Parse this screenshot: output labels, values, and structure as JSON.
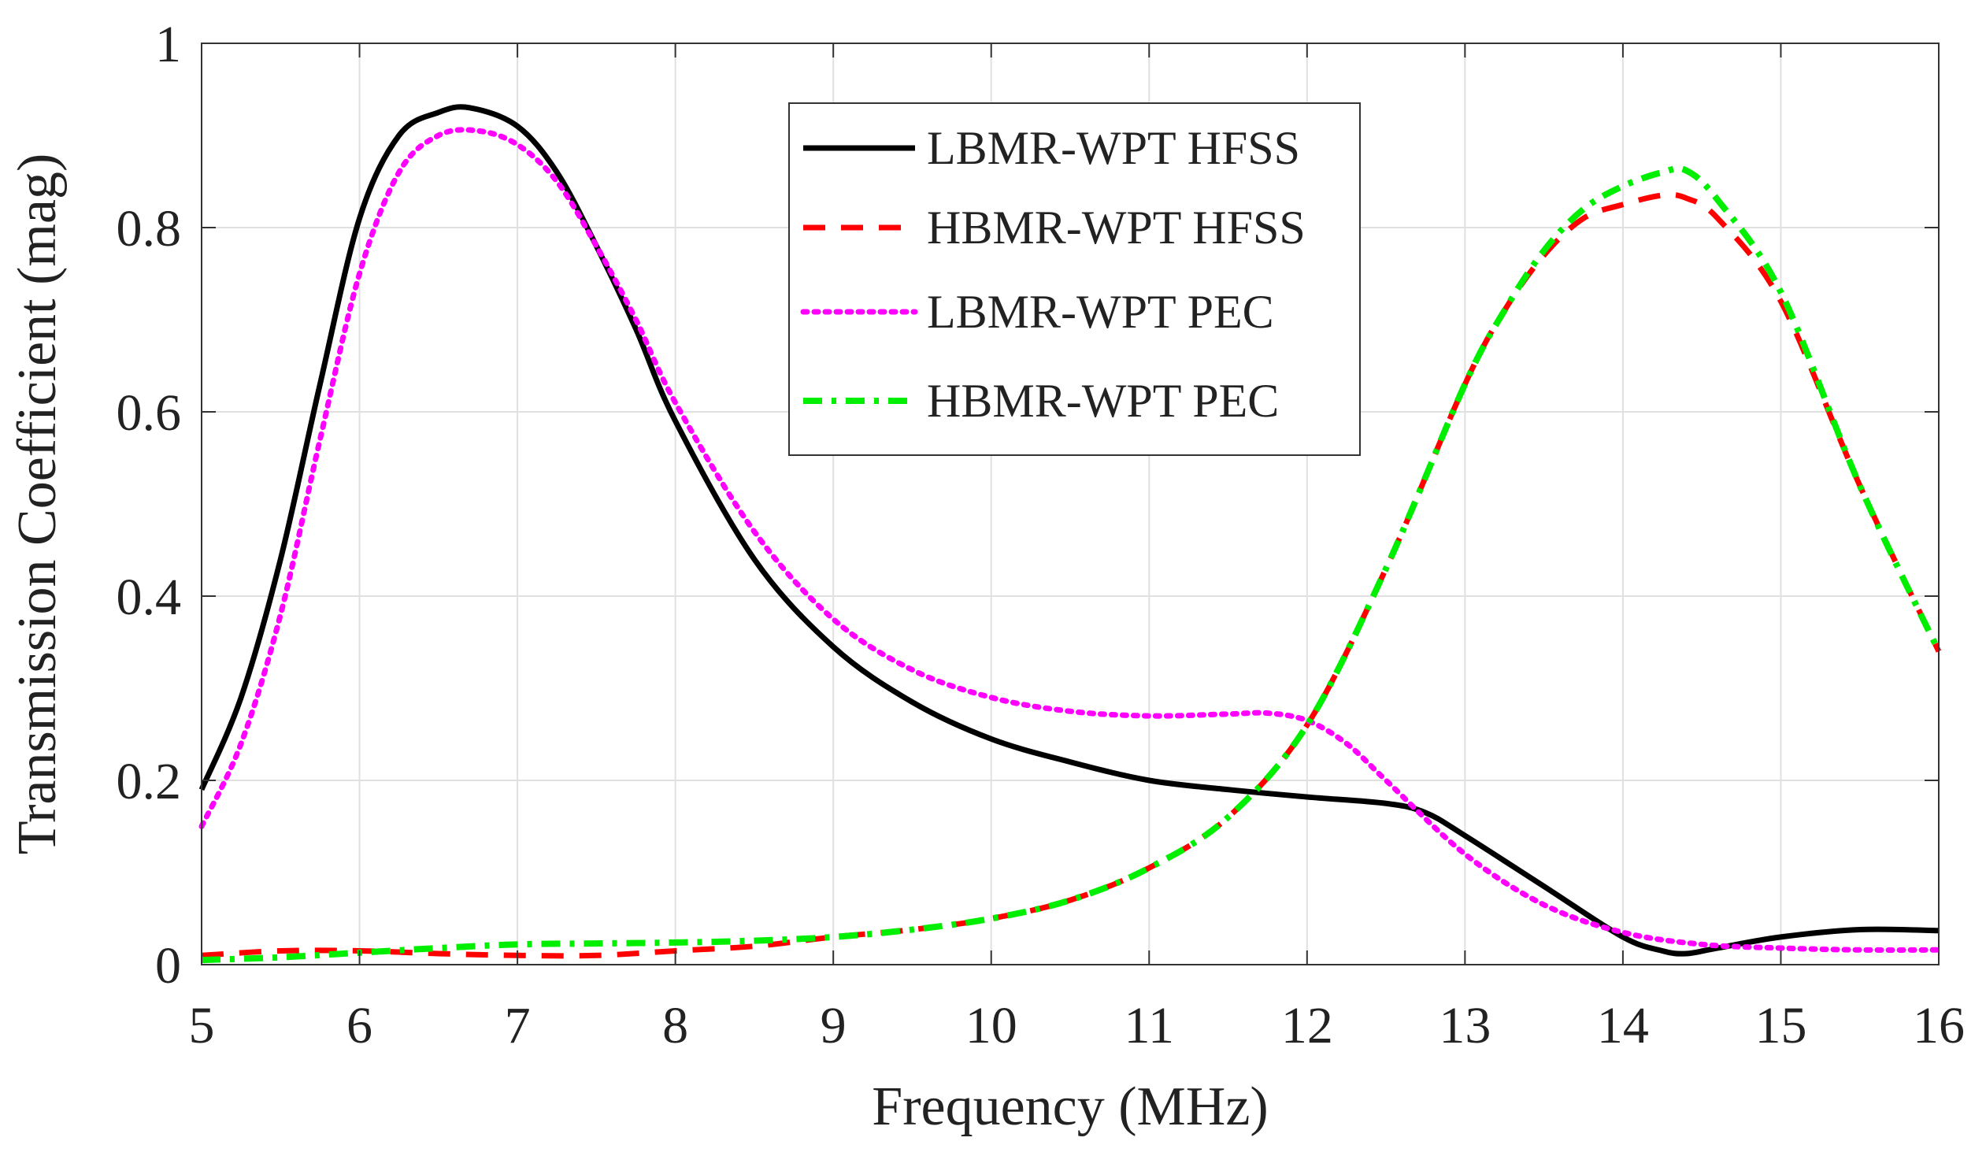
{
  "chart_data": {
    "type": "line",
    "title": "",
    "xlabel": "Frequency (MHz)",
    "ylabel": "Transmission Coefficient (mag)",
    "xlim": [
      5,
      16
    ],
    "ylim": [
      0,
      1
    ],
    "xticks": [
      5,
      6,
      7,
      8,
      9,
      10,
      11,
      12,
      13,
      14,
      15,
      16
    ],
    "xtick_labels": [
      "5",
      "6",
      "7",
      "8",
      "9",
      "10",
      "11",
      "12",
      "13",
      "14",
      "15",
      "16"
    ],
    "yticks": [
      0,
      0.2,
      0.4,
      0.6,
      0.8,
      1
    ],
    "ytick_labels": [
      "0",
      "0.2",
      "0.4",
      "0.6",
      "0.8",
      "1"
    ],
    "grid": true,
    "legend_position": "top-center",
    "series": [
      {
        "name": "LBMR-WPT HFSS",
        "color": "#000000",
        "style": "solid",
        "x": [
          5,
          5.25,
          5.5,
          5.75,
          6,
          6.25,
          6.5,
          6.7,
          7,
          7.25,
          7.5,
          7.75,
          8,
          8.5,
          9,
          9.5,
          10,
          10.5,
          11,
          11.5,
          12,
          12.5,
          12.75,
          13,
          13.5,
          14,
          14.25,
          14.4,
          14.6,
          15,
          15.5,
          16
        ],
        "y": [
          0.19,
          0.29,
          0.44,
          0.63,
          0.81,
          0.9,
          0.925,
          0.93,
          0.91,
          0.86,
          0.78,
          0.69,
          0.59,
          0.44,
          0.345,
          0.285,
          0.245,
          0.22,
          0.2,
          0.19,
          0.182,
          0.175,
          0.165,
          0.14,
          0.085,
          0.03,
          0.015,
          0.012,
          0.018,
          0.03,
          0.038,
          0.037
        ]
      },
      {
        "name": "HBMR-WPT HFSS",
        "color": "#ff0000",
        "style": "dashed",
        "x": [
          5,
          5.5,
          6,
          6.5,
          7,
          7.5,
          8,
          8.5,
          9,
          9.5,
          10,
          10.5,
          11,
          11.5,
          12,
          12.5,
          13,
          13.25,
          13.5,
          13.75,
          14,
          14.25,
          14.4,
          14.6,
          15,
          15.5,
          16
        ],
        "y": [
          0.01,
          0.015,
          0.015,
          0.012,
          0.01,
          0.01,
          0.015,
          0.02,
          0.03,
          0.038,
          0.05,
          0.07,
          0.105,
          0.16,
          0.26,
          0.43,
          0.63,
          0.71,
          0.77,
          0.81,
          0.825,
          0.835,
          0.832,
          0.81,
          0.72,
          0.52,
          0.34
        ]
      },
      {
        "name": "LBMR-WPT PEC",
        "color": "#ff00ff",
        "style": "dotted",
        "x": [
          5,
          5.25,
          5.5,
          5.75,
          6,
          6.25,
          6.5,
          6.75,
          7,
          7.25,
          7.5,
          7.75,
          8,
          8.5,
          9,
          9.5,
          10,
          10.5,
          11,
          11.5,
          11.75,
          12,
          12.25,
          12.5,
          13,
          13.5,
          14,
          14.5,
          15,
          15.5,
          16
        ],
        "y": [
          0.15,
          0.24,
          0.38,
          0.57,
          0.75,
          0.86,
          0.9,
          0.905,
          0.89,
          0.85,
          0.78,
          0.7,
          0.61,
          0.47,
          0.375,
          0.32,
          0.29,
          0.275,
          0.27,
          0.272,
          0.273,
          0.265,
          0.24,
          0.2,
          0.12,
          0.065,
          0.035,
          0.022,
          0.018,
          0.016,
          0.016
        ]
      },
      {
        "name": "HBMR-WPT PEC",
        "color": "#00ee00",
        "style": "dashdot",
        "x": [
          5,
          5.5,
          6,
          6.5,
          7,
          7.5,
          8,
          8.5,
          9,
          9.5,
          10,
          10.5,
          11,
          11.5,
          12,
          12.5,
          13,
          13.25,
          13.5,
          13.75,
          14,
          14.25,
          14.4,
          14.6,
          15,
          15.5,
          16
        ],
        "y": [
          0.005,
          0.008,
          0.013,
          0.018,
          0.022,
          0.023,
          0.024,
          0.026,
          0.03,
          0.038,
          0.05,
          0.07,
          0.105,
          0.16,
          0.26,
          0.43,
          0.63,
          0.71,
          0.775,
          0.82,
          0.845,
          0.86,
          0.862,
          0.83,
          0.73,
          0.52,
          0.34
        ]
      }
    ]
  }
}
